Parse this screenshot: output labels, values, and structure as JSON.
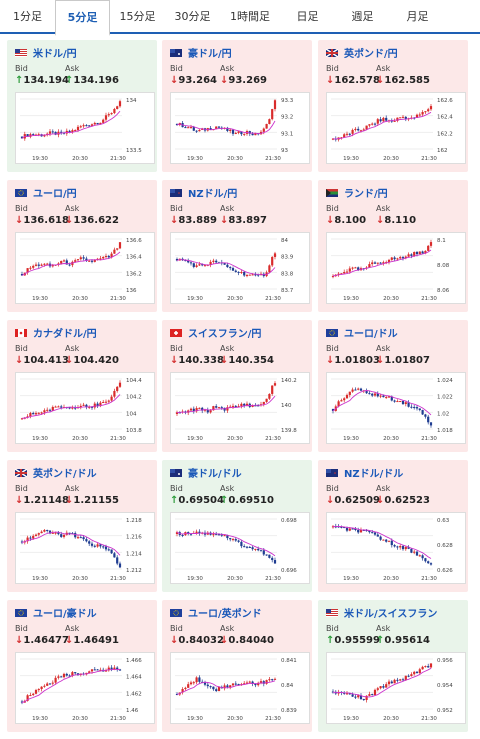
{
  "tabs": [
    "1分足",
    "5分足",
    "15分足",
    "30分足",
    "1時間足",
    "日足",
    "週足",
    "月足"
  ],
  "active_tab": 1,
  "labels": {
    "bid": "Bid",
    "ask": "Ask"
  },
  "colors": {
    "up": "#e9f4ea",
    "down": "#fce8e8",
    "title": "#1a58b8",
    "candle_up": "#d92b2b",
    "candle_down": "#1f3c91",
    "ma": "#cc33cc"
  },
  "cards": [
    {
      "name": "米ドル/円",
      "flag": "us",
      "dir": "up",
      "bid": "134.194",
      "ask": "134.196",
      "yticks": [
        "134",
        "133.5"
      ],
      "xticks": [
        "19:30",
        "20:30",
        "21:30"
      ],
      "trend": [
        0.25,
        0.3,
        0.28,
        0.32,
        0.3,
        0.35,
        0.45,
        0.5,
        0.55,
        0.7,
        0.95
      ]
    },
    {
      "name": "豪ドル/円",
      "flag": "au",
      "dir": "down",
      "bid": "93.264",
      "ask": "93.269",
      "yticks": [
        "93.3",
        "93.2",
        "93.1",
        "93"
      ],
      "xticks": [
        "19:30",
        "20:30",
        "21:30"
      ],
      "trend": [
        0.5,
        0.45,
        0.35,
        0.4,
        0.45,
        0.38,
        0.3,
        0.35,
        0.28,
        0.4,
        0.95
      ]
    },
    {
      "name": "英ポンド/円",
      "flag": "gb",
      "dir": "down",
      "bid": "162.578",
      "ask": "162.585",
      "yticks": [
        "162.6",
        "162.4",
        "162.2",
        "162"
      ],
      "xticks": [
        "19:30",
        "20:30",
        "21:30"
      ],
      "trend": [
        0.2,
        0.25,
        0.35,
        0.4,
        0.5,
        0.6,
        0.55,
        0.65,
        0.6,
        0.7,
        0.85
      ]
    },
    {
      "name": "ユーロ/円",
      "flag": "eu",
      "dir": "down",
      "bid": "136.618",
      "ask": "136.622",
      "yticks": [
        "136.6",
        "136.4",
        "136.2",
        "136"
      ],
      "xticks": [
        "19:30",
        "20:30",
        "21:30"
      ],
      "trend": [
        0.3,
        0.45,
        0.5,
        0.45,
        0.55,
        0.5,
        0.6,
        0.55,
        0.6,
        0.65,
        0.9
      ]
    },
    {
      "name": "NZドル/円",
      "flag": "nz",
      "dir": "down",
      "bid": "83.889",
      "ask": "83.897",
      "yticks": [
        "84",
        "83.9",
        "83.8",
        "83.7"
      ],
      "xticks": [
        "19:30",
        "20:30",
        "21:30"
      ],
      "trend": [
        0.6,
        0.55,
        0.45,
        0.5,
        0.55,
        0.45,
        0.35,
        0.3,
        0.25,
        0.3,
        0.75
      ]
    },
    {
      "name": "ランド/円",
      "flag": "za",
      "dir": "down",
      "bid": "8.100",
      "ask": "8.110",
      "yticks": [
        "8.1",
        "8.08",
        "8.06"
      ],
      "xticks": [
        "19:30",
        "20:30",
        "21:30"
      ],
      "trend": [
        0.25,
        0.35,
        0.4,
        0.38,
        0.5,
        0.55,
        0.6,
        0.62,
        0.7,
        0.72,
        0.9
      ]
    },
    {
      "name": "カナダドル/円",
      "flag": "ca",
      "dir": "down",
      "bid": "104.413",
      "ask": "104.420",
      "yticks": [
        "104.4",
        "104.2",
        "104",
        "103.8"
      ],
      "xticks": [
        "19:30",
        "20:30",
        "21:30"
      ],
      "trend": [
        0.2,
        0.3,
        0.35,
        0.4,
        0.45,
        0.42,
        0.5,
        0.45,
        0.5,
        0.55,
        0.95
      ]
    },
    {
      "name": "スイスフラン/円",
      "flag": "ch",
      "dir": "down",
      "bid": "140.338",
      "ask": "140.354",
      "yticks": [
        "140.2",
        "140",
        "139.8"
      ],
      "xticks": [
        "19:30",
        "20:30",
        "21:30"
      ],
      "trend": [
        0.3,
        0.35,
        0.4,
        0.35,
        0.45,
        0.4,
        0.45,
        0.5,
        0.45,
        0.55,
        0.95
      ]
    },
    {
      "name": "ユーロ/ドル",
      "flag": "eu",
      "dir": "down",
      "bid": "1.01803",
      "ask": "1.01807",
      "yticks": [
        "1.024",
        "1.022",
        "1.02",
        "1.018"
      ],
      "xticks": [
        "19:30",
        "20:30",
        "21:30"
      ],
      "trend": [
        0.4,
        0.6,
        0.8,
        0.75,
        0.7,
        0.65,
        0.6,
        0.55,
        0.45,
        0.35,
        0.1
      ]
    },
    {
      "name": "英ポンド/ドル",
      "flag": "gb",
      "dir": "down",
      "bid": "1.21148",
      "ask": "1.21155",
      "yticks": [
        "1.218",
        "1.216",
        "1.214",
        "1.212"
      ],
      "xticks": [
        "19:30",
        "20:30",
        "21:30"
      ],
      "trend": [
        0.55,
        0.65,
        0.75,
        0.72,
        0.68,
        0.7,
        0.6,
        0.5,
        0.45,
        0.35,
        0.05
      ]
    },
    {
      "name": "豪ドル/ドル",
      "flag": "au",
      "dir": "up",
      "bid": "0.69504",
      "ask": "0.69510",
      "yticks": [
        "0.698",
        "0.696"
      ],
      "xticks": [
        "19:30",
        "20:30",
        "21:30"
      ],
      "trend": [
        0.7,
        0.72,
        0.75,
        0.7,
        0.72,
        0.65,
        0.55,
        0.45,
        0.4,
        0.3,
        0.1
      ]
    },
    {
      "name": "NZドル/ドル",
      "flag": "nz",
      "dir": "down",
      "bid": "0.62509",
      "ask": "0.62523",
      "yticks": [
        "0.63",
        "0.628",
        "0.626"
      ],
      "xticks": [
        "19:30",
        "20:30",
        "21:30"
      ],
      "trend": [
        0.85,
        0.8,
        0.78,
        0.75,
        0.7,
        0.6,
        0.5,
        0.45,
        0.35,
        0.25,
        0.1
      ]
    },
    {
      "name": "ユーロ/豪ドル",
      "flag": "eu",
      "dir": "down",
      "bid": "1.46477",
      "ask": "1.46491",
      "yticks": [
        "1.466",
        "1.464",
        "1.462",
        "1.46"
      ],
      "xticks": [
        "19:30",
        "20:30",
        "21:30"
      ],
      "trend": [
        0.15,
        0.3,
        0.45,
        0.55,
        0.65,
        0.7,
        0.72,
        0.75,
        0.78,
        0.8,
        0.8
      ]
    },
    {
      "name": "ユーロ/英ポンド",
      "flag": "eu",
      "dir": "down",
      "bid": "0.84032",
      "ask": "0.84040",
      "yticks": [
        "0.841",
        "0.84",
        "0.839"
      ],
      "xticks": [
        "19:30",
        "20:30",
        "21:30"
      ],
      "trend": [
        0.3,
        0.45,
        0.6,
        0.5,
        0.4,
        0.45,
        0.5,
        0.55,
        0.5,
        0.55,
        0.6
      ]
    },
    {
      "name": "米ドル/スイスフラン",
      "flag": "us",
      "dir": "up",
      "bid": "0.95599",
      "ask": "0.95614",
      "yticks": [
        "0.956",
        "0.954",
        "0.952"
      ],
      "xticks": [
        "19:30",
        "20:30",
        "21:30"
      ],
      "trend": [
        0.35,
        0.3,
        0.28,
        0.2,
        0.3,
        0.45,
        0.55,
        0.6,
        0.7,
        0.8,
        0.9
      ]
    }
  ]
}
